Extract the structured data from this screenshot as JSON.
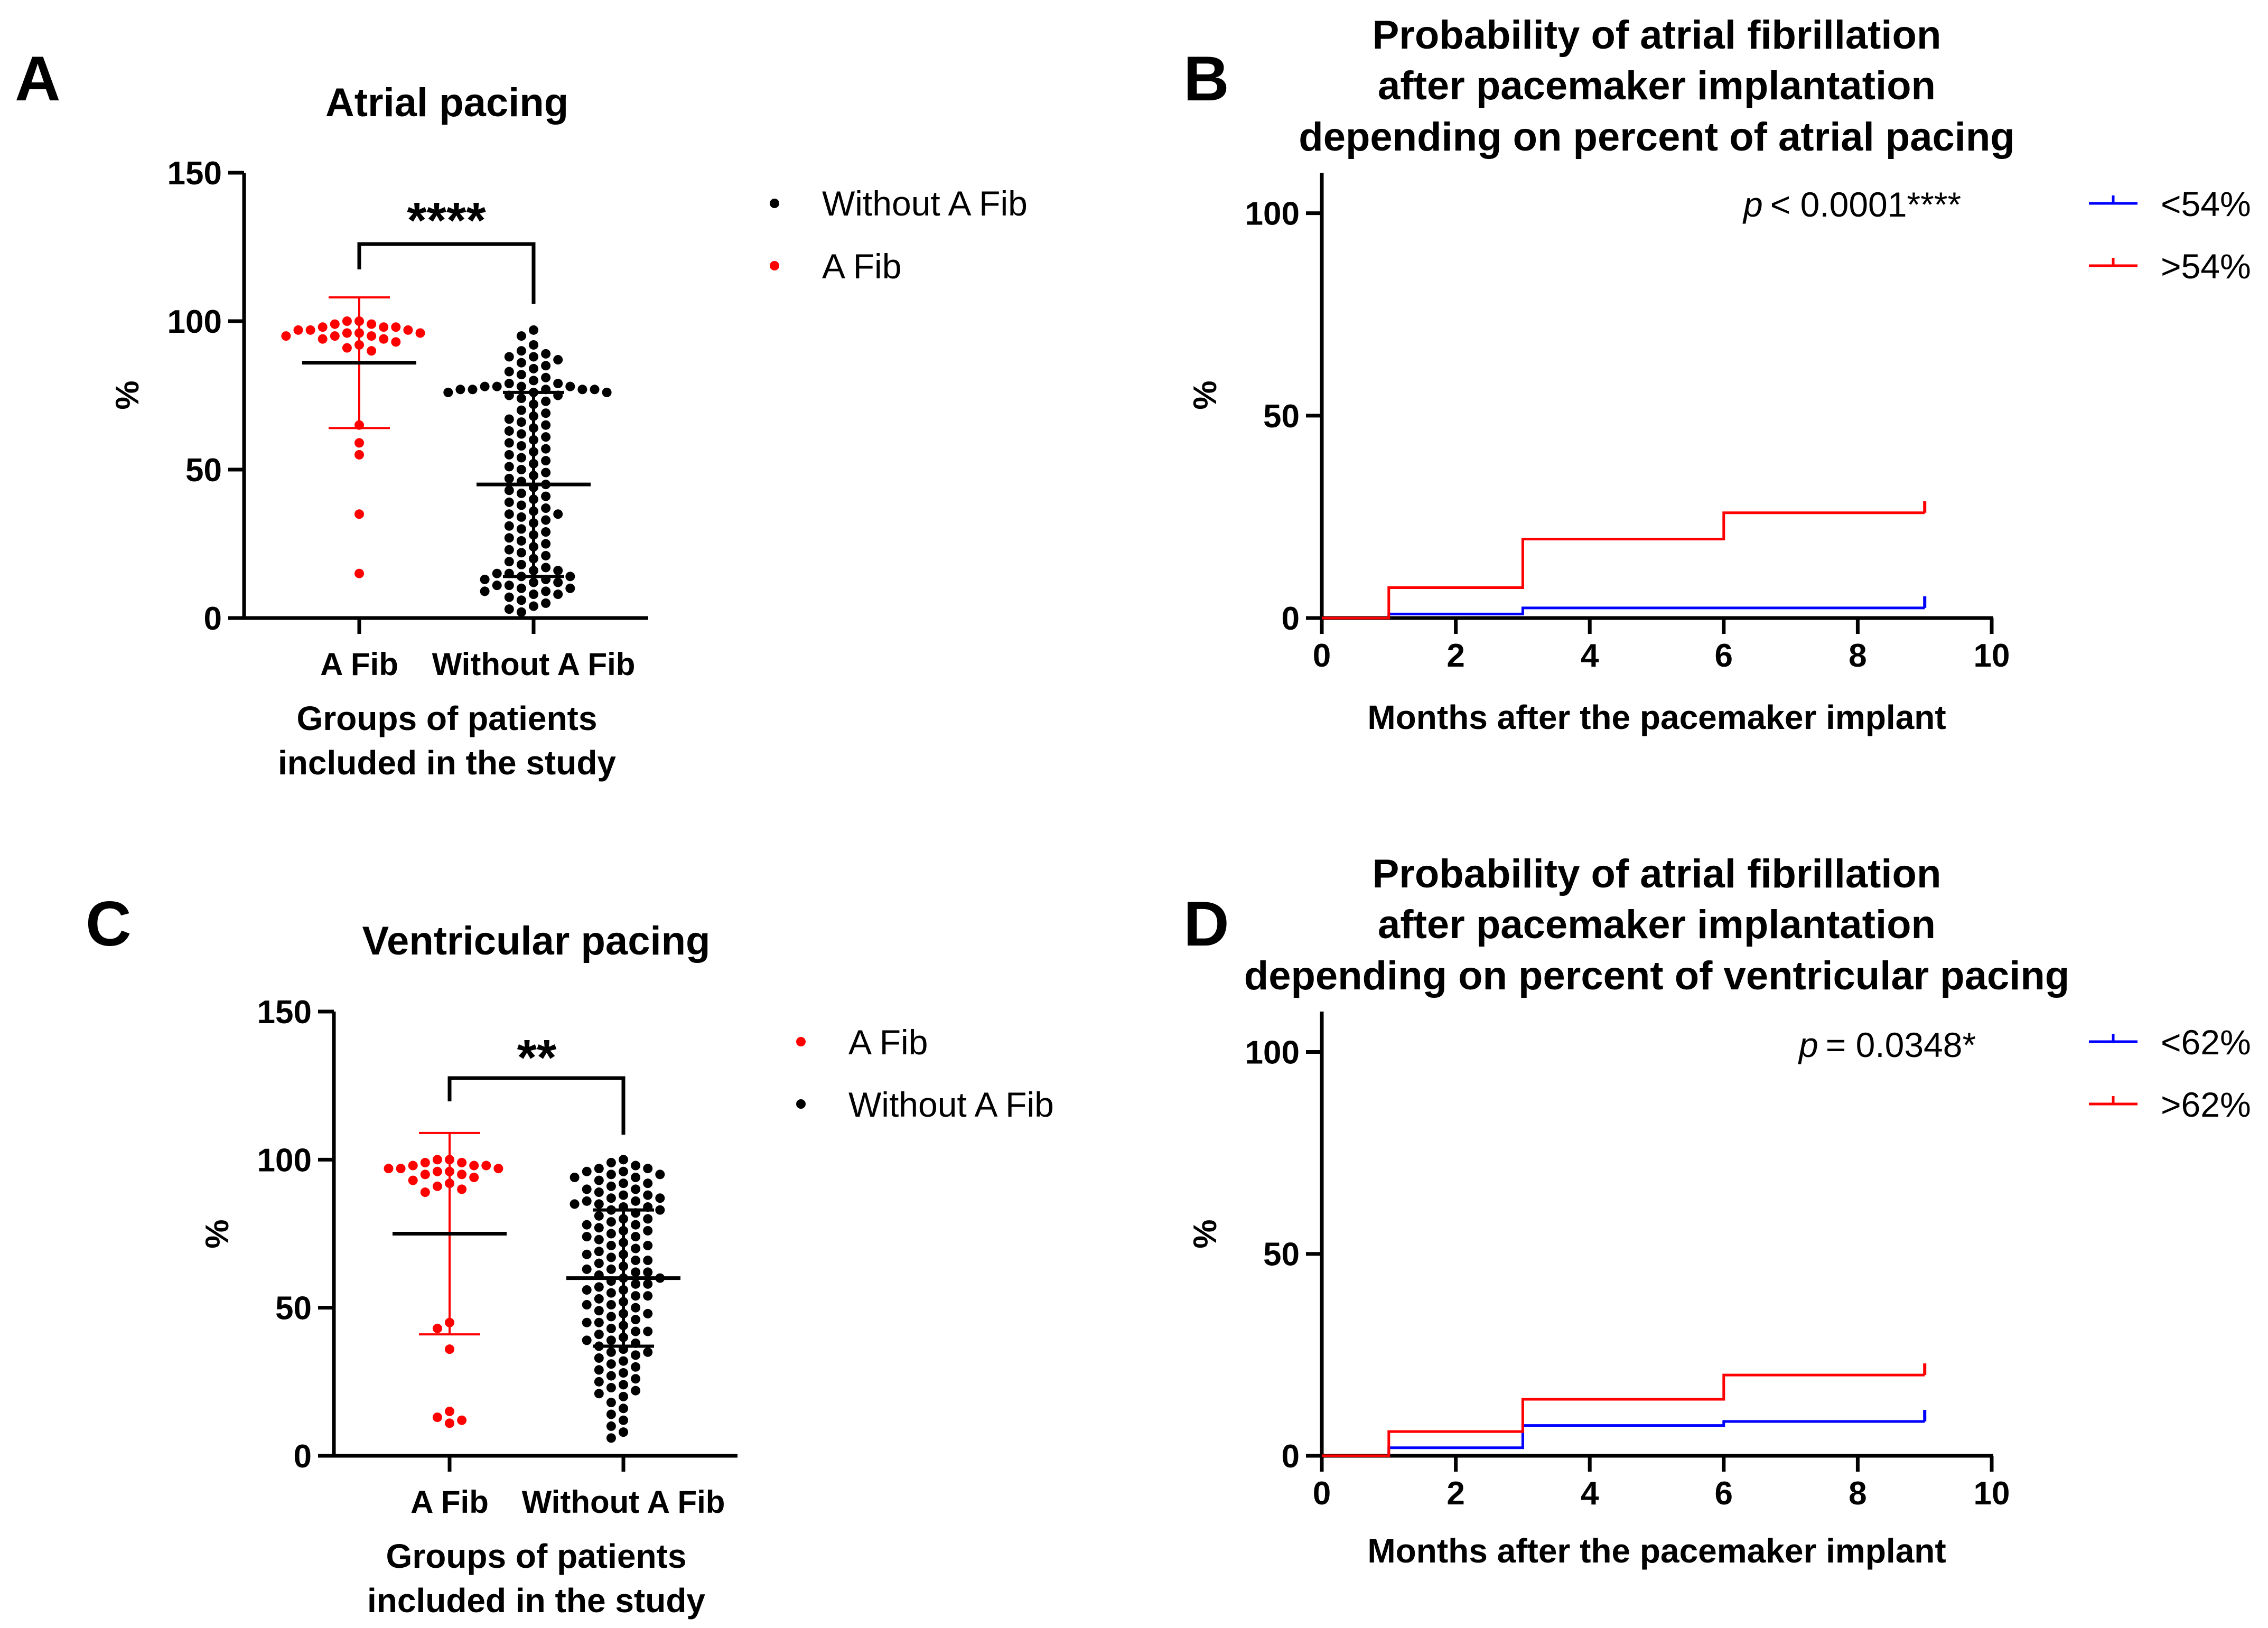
{
  "figure": {
    "colors": {
      "afib": "#ff0000",
      "without": "#000000",
      "low": "#0000ff",
      "high": "#ff0000",
      "axis": "#000000"
    }
  },
  "chart_data": [
    {
      "panel": "A",
      "type": "scatter",
      "title": "Atrial pacing",
      "ylabel": "%",
      "xlabel": "Groups of patients included in the study",
      "xlabel_lines": [
        "Groups of patients",
        "included in the study"
      ],
      "categories": [
        "A Fib",
        "Without A Fib"
      ],
      "ylim": [
        0,
        150
      ],
      "yticks": [
        0,
        50,
        100,
        150
      ],
      "significance": "****",
      "legend_position": "top-right",
      "legend": [
        {
          "label": "Without A Fib",
          "color": "#000000"
        },
        {
          "label": "A Fib",
          "color": "#ff0000"
        }
      ],
      "series": [
        {
          "name": "A Fib",
          "color": "#ff0000",
          "category": 0,
          "mean": 86,
          "sd_lower": 64,
          "sd_upper": 108,
          "values": [
            100,
            100,
            99,
            99,
            98,
            98,
            98,
            97,
            97,
            97,
            96,
            96,
            96,
            95,
            95,
            95,
            94,
            94,
            93,
            92,
            91,
            90,
            65,
            59,
            55,
            35,
            15
          ]
        },
        {
          "name": "Without A Fib",
          "color": "#000000",
          "category": 1,
          "mean": 45,
          "sd_lower": 14,
          "sd_upper": 76,
          "values": [
            97,
            95,
            92,
            90,
            89,
            88,
            88,
            87,
            86,
            85,
            84,
            83,
            82,
            81,
            80,
            79,
            79,
            78,
            78,
            78,
            78,
            77,
            77,
            77,
            77,
            77,
            76,
            76,
            76,
            75,
            75,
            74,
            73,
            72,
            70,
            69,
            68,
            67,
            66,
            65,
            64,
            63,
            62,
            61,
            60,
            59,
            58,
            57,
            56,
            55,
            54,
            53,
            52,
            51,
            50,
            49,
            48,
            47,
            46,
            45,
            44,
            43,
            42,
            41,
            40,
            39,
            38,
            37,
            36,
            35,
            35,
            34,
            33,
            32,
            31,
            30,
            29,
            28,
            27,
            26,
            25,
            24,
            23,
            22,
            21,
            20,
            19,
            18,
            17,
            16,
            16,
            15,
            15,
            14,
            14,
            13,
            13,
            12,
            12,
            11,
            11,
            10,
            10,
            9,
            9,
            8,
            8,
            7,
            6,
            5,
            4,
            3,
            2
          ]
        }
      ]
    },
    {
      "panel": "B",
      "type": "line",
      "title": "Probability of atrial fibrillation after pacemaker implantation depending on percent of atrial pacing",
      "title_lines": [
        "Probability of atrial fibrillation",
        "after pacemaker implantation",
        "depending on percent of atrial pacing"
      ],
      "xlabel": "Months after the pacemaker implant",
      "ylabel": "%",
      "xlim": [
        0,
        10
      ],
      "ylim": [
        0,
        110
      ],
      "xticks": [
        0,
        2,
        4,
        6,
        8,
        10
      ],
      "yticks": [
        0,
        50,
        100
      ],
      "p_prefix": "p",
      "p_value": "< 0.0001****",
      "legend_position": "top-right",
      "series": [
        {
          "name": "<54%",
          "color": "#0000ff",
          "step": true,
          "x": [
            0,
            1,
            3,
            6,
            9
          ],
          "y": [
            0,
            1,
            2.5,
            2.5,
            2.5
          ],
          "censor_x": 9,
          "censor_y": 2.5
        },
        {
          "name": ">54%",
          "color": "#ff0000",
          "step": true,
          "x": [
            0,
            1,
            3,
            6,
            9
          ],
          "y": [
            0,
            7.5,
            19.5,
            26,
            26
          ],
          "censor_x": 9,
          "censor_y": 26
        }
      ]
    },
    {
      "panel": "C",
      "type": "scatter",
      "title": "Ventricular pacing",
      "ylabel": "%",
      "xlabel": "Groups of patients included in the study",
      "xlabel_lines": [
        "Groups of patients",
        "included in the study"
      ],
      "categories": [
        "A Fib",
        "Without A Fib"
      ],
      "ylim": [
        0,
        150
      ],
      "yticks": [
        0,
        50,
        100,
        150
      ],
      "significance": "**",
      "legend_position": "top-right",
      "legend": [
        {
          "label": "A Fib",
          "color": "#ff0000"
        },
        {
          "label": "Without A Fib",
          "color": "#000000"
        }
      ],
      "series": [
        {
          "name": "A Fib",
          "color": "#ff0000",
          "category": 0,
          "mean": 75,
          "sd_lower": 41,
          "sd_upper": 109,
          "values": [
            100,
            100,
            99,
            99,
            98,
            98,
            98,
            97,
            97,
            97,
            96,
            96,
            95,
            95,
            94,
            93,
            92,
            91,
            90,
            89,
            45,
            43,
            36,
            15,
            13,
            12,
            11
          ]
        },
        {
          "name": "Without A Fib",
          "color": "#000000",
          "category": 1,
          "mean": 60,
          "sd_lower": 37,
          "sd_upper": 83,
          "values": [
            100,
            99,
            98,
            97,
            97,
            96,
            96,
            95,
            95,
            94,
            94,
            93,
            92,
            92,
            91,
            90,
            90,
            89,
            88,
            88,
            87,
            87,
            86,
            86,
            85,
            85,
            84,
            84,
            83,
            83,
            82,
            81,
            80,
            80,
            79,
            78,
            78,
            77,
            76,
            76,
            75,
            74,
            74,
            73,
            72,
            71,
            71,
            70,
            69,
            68,
            68,
            67,
            66,
            66,
            65,
            64,
            63,
            63,
            62,
            62,
            61,
            60,
            60,
            59,
            58,
            58,
            57,
            56,
            56,
            55,
            54,
            54,
            53,
            52,
            51,
            51,
            50,
            49,
            48,
            48,
            47,
            46,
            45,
            45,
            44,
            43,
            42,
            42,
            41,
            40,
            39,
            39,
            38,
            37,
            36,
            35,
            35,
            34,
            33,
            32,
            31,
            30,
            29,
            28,
            27,
            26,
            25,
            24,
            23,
            22,
            21,
            20,
            18,
            16,
            14,
            12,
            10,
            8,
            6
          ]
        }
      ]
    },
    {
      "panel": "D",
      "type": "line",
      "title": "Probability of atrial fibrillation after pacemaker implantation depending on percent of ventricular pacing",
      "title_lines": [
        "Probability of atrial fibrillation",
        "after pacemaker implantation",
        "depending on percent of ventricular pacing"
      ],
      "xlabel": "Months after the pacemaker implant",
      "ylabel": "%",
      "xlim": [
        0,
        10
      ],
      "ylim": [
        0,
        110
      ],
      "xticks": [
        0,
        2,
        4,
        6,
        8,
        10
      ],
      "yticks": [
        0,
        50,
        100
      ],
      "p_prefix": "p",
      "p_value": "= 0.0348*",
      "legend_position": "top-right",
      "series": [
        {
          "name": "<62%",
          "color": "#0000ff",
          "step": true,
          "x": [
            0,
            1,
            3,
            6,
            9
          ],
          "y": [
            0,
            2,
            7.5,
            8.5,
            8.5
          ],
          "censor_x": 9,
          "censor_y": 8.5
        },
        {
          "name": ">62%",
          "color": "#ff0000",
          "step": true,
          "x": [
            0,
            1,
            3,
            6,
            9
          ],
          "y": [
            0,
            6,
            14,
            20,
            20
          ],
          "censor_x": 9,
          "censor_y": 20
        }
      ]
    }
  ]
}
